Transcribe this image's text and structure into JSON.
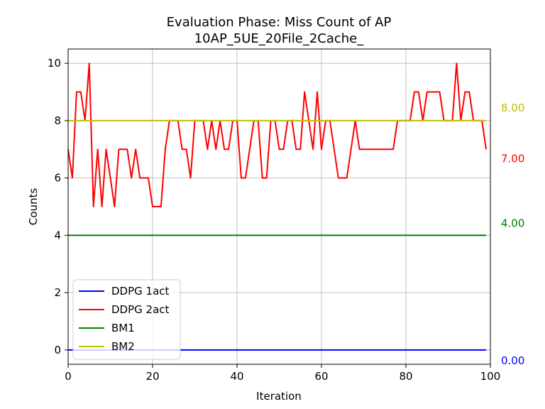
{
  "chart_data": {
    "type": "line",
    "title": "Evaluation Phase: Miss Count of AP",
    "subtitle": "10AP_5UE_20File_2Cache_",
    "xlabel": "Iteration",
    "ylabel": "Counts",
    "xlim": [
      0,
      100
    ],
    "ylim": [
      -0.5,
      10.5
    ],
    "x_ticks": [
      "0",
      "20",
      "40",
      "60",
      "80",
      "100"
    ],
    "y_ticks": [
      "0",
      "2",
      "4",
      "6",
      "8",
      "10"
    ],
    "grid": true,
    "legend_position": "lower-left",
    "series": [
      {
        "name": "DDPG 1act",
        "color": "#0000ff",
        "x": [
          0,
          99
        ],
        "values": [
          0,
          0
        ]
      },
      {
        "name": "DDPG 2act",
        "color": "#ff0000",
        "values": [
          7,
          6,
          9,
          9,
          8,
          10,
          5,
          7,
          5,
          7,
          6,
          5,
          7,
          7,
          7,
          6,
          7,
          6,
          6,
          6,
          5,
          5,
          5,
          7,
          8,
          8,
          8,
          7,
          7,
          6,
          8,
          8,
          8,
          7,
          8,
          7,
          8,
          7,
          7,
          8,
          8,
          6,
          6,
          7,
          8,
          8,
          6,
          6,
          8,
          8,
          7,
          7,
          8,
          8,
          7,
          7,
          9,
          8,
          7,
          9,
          7,
          8,
          8,
          7,
          6,
          6,
          6,
          7,
          8,
          7,
          7,
          7,
          7,
          7,
          7,
          7,
          7,
          7,
          8,
          8,
          8,
          8,
          9,
          9,
          8,
          9,
          9,
          9,
          9,
          8,
          8,
          8,
          10,
          8,
          9,
          9,
          8,
          8,
          8,
          7
        ]
      },
      {
        "name": "BM1",
        "color": "#008000",
        "x": [
          0,
          99
        ],
        "values": [
          4,
          4
        ]
      },
      {
        "name": "BM2",
        "color": "#bfbf00",
        "x": [
          0,
          99
        ],
        "values": [
          8,
          8
        ]
      }
    ],
    "annotations": [
      {
        "text": "8.00",
        "color": "#bfbf00",
        "y": 8.0
      },
      {
        "text": "7.00",
        "color": "#ff0000",
        "y": 7.0
      },
      {
        "text": "4.00",
        "color": "#008000",
        "y": 4.0
      },
      {
        "text": "0.00",
        "color": "#0000ff",
        "y": 0.0
      }
    ]
  }
}
